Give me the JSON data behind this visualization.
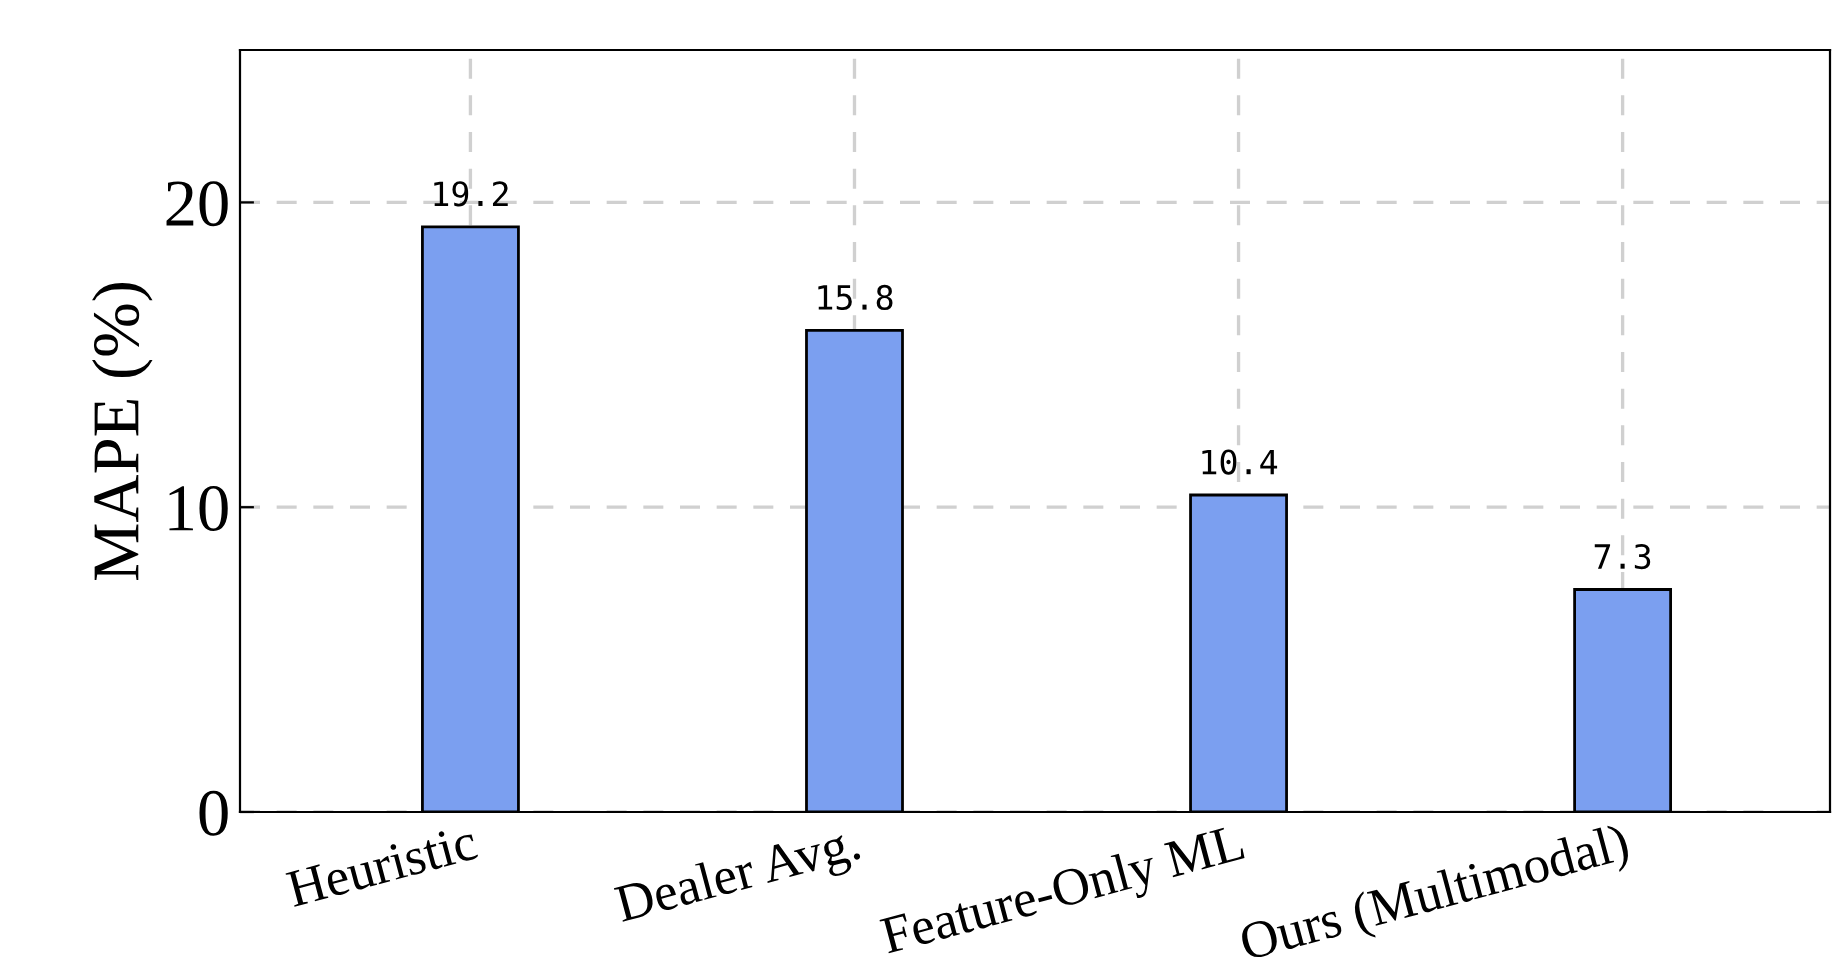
{
  "chart_data": {
    "type": "bar",
    "ylabel": "MAPE (%)",
    "categories": [
      "Heuristic",
      "Dealer Avg.",
      "Feature-Only ML",
      "Ours (Multimodal)"
    ],
    "values": [
      19.2,
      15.8,
      10.4,
      7.3
    ],
    "color": "#7b9ff0",
    "ylim": [
      0,
      25
    ],
    "yticks": [
      0,
      10,
      20
    ],
    "grid": true,
    "data_labels": true
  }
}
